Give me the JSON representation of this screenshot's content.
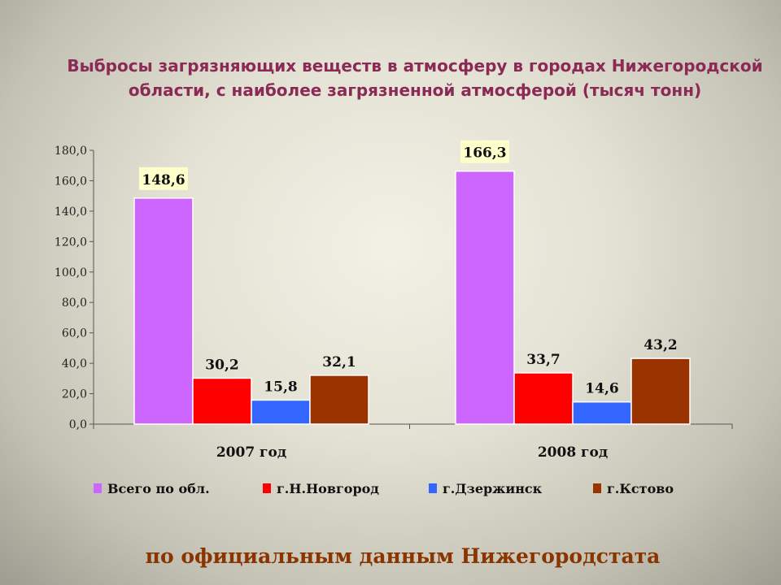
{
  "title_lines": [
    "Выбросы загрязняющих веществ в атмосферу в городах Нижегородской",
    "области, с наиболее загрязненной атмосферой (тысяч тонн)"
  ],
  "footer": "по официальным данным Нижегородстата",
  "chart_data": {
    "type": "bar",
    "title": "Выбросы загрязняющих веществ в атмосферу в городах Нижегородской области, с наиболее загрязненной атмосферой (тысяч тонн)",
    "categories": [
      "2007 год",
      "2008 год"
    ],
    "series": [
      {
        "name": "Всего по обл.",
        "color": "#cc66ff",
        "values": [
          148.6,
          166.3
        ],
        "labels": [
          "148,6",
          "166,3"
        ]
      },
      {
        "name": "г.Н.Новгород",
        "color": "#ff0000",
        "values": [
          30.2,
          33.7
        ],
        "labels": [
          "30,2",
          "33,7"
        ]
      },
      {
        "name": "г.Дзержинск",
        "color": "#3366ff",
        "values": [
          15.8,
          14.6
        ],
        "labels": [
          "15,8",
          "14,6"
        ]
      },
      {
        "name": "г.Кстово",
        "color": "#993300",
        "values": [
          32.1,
          43.2
        ],
        "labels": [
          "32,1",
          "43,2"
        ]
      }
    ],
    "ylim": [
      0,
      180
    ],
    "yticks": [
      "0,0",
      "20,0",
      "40,0",
      "60,0",
      "80,0",
      "100,0",
      "120,0",
      "140,0",
      "160,0",
      "180,0"
    ],
    "highlight_label_bg": "#ffffcc",
    "legend_position": "bottom",
    "grid": false
  }
}
